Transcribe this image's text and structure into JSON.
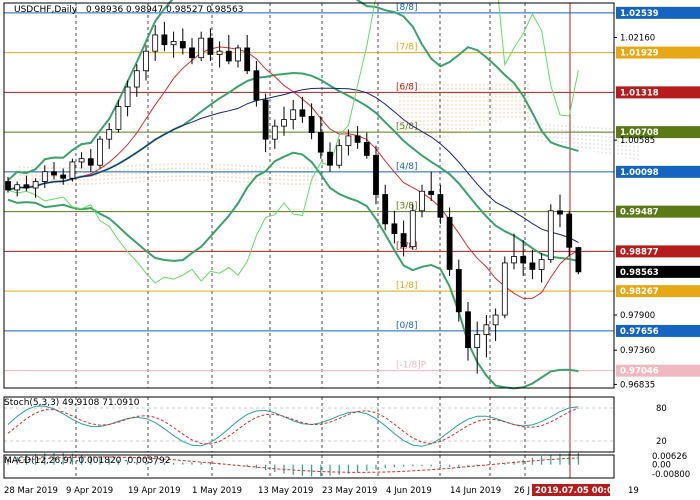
{
  "main_pane": {
    "title": "USDCHF,Daily",
    "ohlc": "0.98936 0.98947 0.98527 0.98563"
  },
  "stoch_pane": {
    "title": "Stoch(5,3,3) 49.9108 71.0910",
    "levels": [
      "80",
      "20"
    ]
  },
  "macd_pane": {
    "title": "MACD(12,26,9) -0.001820 -0.003792",
    "levels": [
      "0.00626",
      "0.00",
      "-0.00800"
    ]
  },
  "price_axis": {
    "labels": [
      "1.02539",
      "1.02160",
      "1.01929",
      "1.01318",
      "1.00708",
      "1.00585",
      "1.00098",
      "0.99487",
      "0.98877",
      "0.98563",
      "0.98267",
      "0.97900",
      "0.97656",
      "0.97360",
      "0.97046",
      "0.96835"
    ],
    "colors": {
      "1.02539": "#1565c0",
      "1.01929": "#e6a817",
      "1.01318": "#b71c1c",
      "1.00708": "#5b7a16",
      "1.00098": "#1565c0",
      "0.99487": "#5b7a16",
      "0.98877": "#b71c1c",
      "0.98563": "#000000",
      "0.98267": "#e6a817",
      "0.97656": "#1565c0",
      "0.97046": "#f0b8c0"
    }
  },
  "murrey_labels": [
    "[8/8]",
    "[7/8]",
    "[6/8]",
    "[5/8]",
    "[4/8]",
    "[3/8]",
    "[2/8]",
    "[1/8]",
    "[0/8]",
    "[-1/8]P"
  ],
  "time_axis": {
    "labels": [
      "28 Mar 2019",
      "9 Apr 2019",
      "19 Apr 2019",
      "1 May 2019",
      "13 May 2019",
      "23 May 2019",
      "4 Jun 2019",
      "14 Jun 2019",
      "26 J",
      "2019.07.05 00:00",
      "19"
    ]
  },
  "chart_data": {
    "type": "candlestick",
    "symbol": "USDCHF",
    "timeframe": "Daily",
    "ylim": [
      0.9678,
      1.0269
    ],
    "last_price": 0.98563,
    "candles": [
      [
        0.9995,
        1.0002,
        0.9978,
        0.9982
      ],
      [
        0.9982,
        0.9995,
        0.9972,
        0.999
      ],
      [
        0.999,
        1.0004,
        0.998,
        0.9985
      ],
      [
        0.9985,
        1.0,
        0.997,
        0.9995
      ],
      [
        0.9995,
        1.002,
        0.9985,
        1.001
      ],
      [
        1.001,
        1.0025,
        0.9998,
        1.0005
      ],
      [
        1.0005,
        1.0015,
        0.999,
        1.0
      ],
      [
        1.0,
        1.003,
        0.9995,
        1.0025
      ],
      [
        1.0025,
        1.004,
        1.0015,
        1.003
      ],
      [
        1.003,
        1.0045,
        1.001,
        1.002
      ],
      [
        1.002,
        1.0065,
        1.0015,
        1.006
      ],
      [
        1.006,
        1.0085,
        1.0045,
        1.0075
      ],
      [
        1.0075,
        1.012,
        1.007,
        1.011
      ],
      [
        1.011,
        1.015,
        1.0095,
        1.014
      ],
      [
        1.014,
        1.0175,
        1.0125,
        1.0165
      ],
      [
        1.0165,
        1.0205,
        1.015,
        1.0195
      ],
      [
        1.0195,
        1.0235,
        1.018,
        1.022
      ],
      [
        1.022,
        1.024,
        1.0195,
        1.0205
      ],
      [
        1.0205,
        1.0225,
        1.0185,
        1.021
      ],
      [
        1.021,
        1.023,
        1.019,
        1.02
      ],
      [
        1.02,
        1.0215,
        1.0175,
        1.0185
      ],
      [
        1.0185,
        1.0225,
        1.018,
        1.0215
      ],
      [
        1.0215,
        1.023,
        1.018,
        1.019
      ],
      [
        1.019,
        1.021,
        1.017,
        1.0195
      ],
      [
        1.0195,
        1.022,
        1.0175,
        1.018
      ],
      [
        1.018,
        1.0205,
        1.017,
        1.02
      ],
      [
        1.02,
        1.022,
        1.016,
        1.0165
      ],
      [
        1.0165,
        1.018,
        1.011,
        1.012
      ],
      [
        1.012,
        1.013,
        1.004,
        1.006
      ],
      [
        1.006,
        1.009,
        1.0045,
        1.008
      ],
      [
        1.008,
        1.011,
        1.0065,
        1.009
      ],
      [
        1.009,
        1.012,
        1.0075,
        1.0105
      ],
      [
        1.0105,
        1.0125,
        1.0085,
        1.0095
      ],
      [
        1.0095,
        1.0115,
        1.006,
        1.007
      ],
      [
        1.007,
        1.0095,
        1.003,
        1.004
      ],
      [
        1.004,
        1.0055,
        1.001,
        1.002
      ],
      [
        1.002,
        1.006,
        1.0015,
        1.005
      ],
      [
        1.005,
        1.0075,
        1.0035,
        1.0065
      ],
      [
        1.0065,
        1.008,
        1.0045,
        1.0055
      ],
      [
        1.0055,
        1.007,
        1.003,
        1.0035
      ],
      [
        1.0035,
        1.005,
        0.996,
        0.9975
      ],
      [
        0.9975,
        0.999,
        0.992,
        0.993
      ],
      [
        0.993,
        0.995,
        0.99,
        0.9915
      ],
      [
        0.9915,
        0.9935,
        0.988,
        0.9895
      ],
      [
        0.9895,
        0.996,
        0.989,
        0.995
      ],
      [
        0.995,
        0.999,
        0.994,
        0.998
      ],
      [
        0.998,
        1.001,
        0.9965,
        0.9975
      ],
      [
        0.9975,
        0.999,
        0.993,
        0.994
      ],
      [
        0.994,
        0.9955,
        0.985,
        0.986
      ],
      [
        0.986,
        0.9875,
        0.978,
        0.9795
      ],
      [
        0.9795,
        0.981,
        0.972,
        0.974
      ],
      [
        0.974,
        0.978,
        0.97,
        0.976
      ],
      [
        0.976,
        0.979,
        0.9725,
        0.9775
      ],
      [
        0.9775,
        0.98,
        0.975,
        0.979
      ],
      [
        0.979,
        0.988,
        0.9785,
        0.987
      ],
      [
        0.987,
        0.9915,
        0.986,
        0.988
      ],
      [
        0.988,
        0.9905,
        0.985,
        0.987
      ],
      [
        0.987,
        0.989,
        0.9845,
        0.986
      ],
      [
        0.986,
        0.9885,
        0.984,
        0.9875
      ],
      [
        0.9875,
        0.996,
        0.987,
        0.995
      ],
      [
        0.995,
        0.9975,
        0.9925,
        0.9945
      ],
      [
        0.9945,
        0.995,
        0.988,
        0.9894
      ],
      [
        0.98936,
        0.98947,
        0.98527,
        0.98563
      ]
    ]
  }
}
